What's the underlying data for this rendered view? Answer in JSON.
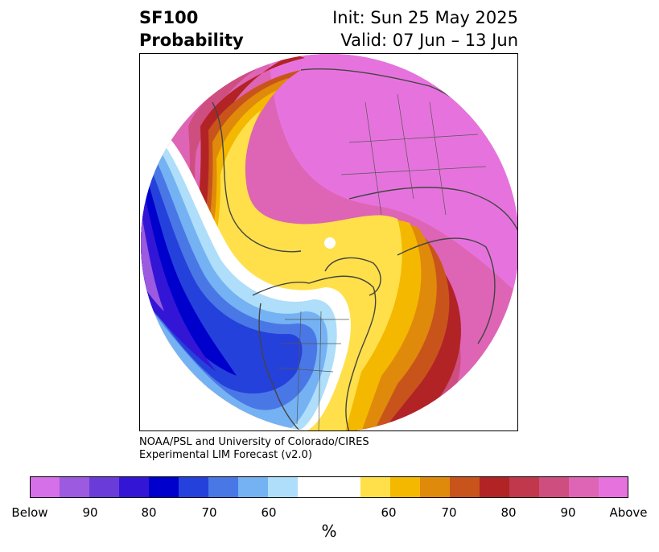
{
  "header": {
    "left_line1": "SF100",
    "left_line2": "Probability",
    "right_line1": "Init: Sun 25 May 2025",
    "right_line2": "Valid: 07 Jun – 13 Jun"
  },
  "credit": {
    "line1": "NOAA/PSL and University of Colorado/CIRES",
    "line2": "Experimental LIM Forecast (v2.0)"
  },
  "colorbar": {
    "colors": [
      "#d670e8",
      "#9b5adf",
      "#6a3bd9",
      "#3316d5",
      "#0000cc",
      "#2541db",
      "#4a77e6",
      "#75b2f3",
      "#aedef9",
      "#ffffff",
      "#ffe04a",
      "#f5b800",
      "#e08a0b",
      "#c9541b",
      "#b22326",
      "#c1384d",
      "#cf4e80",
      "#de64b5",
      "#e673dd"
    ],
    "ticks": [
      "Below",
      "90",
      "80",
      "70",
      "60",
      "60",
      "70",
      "80",
      "90",
      "Above"
    ],
    "unit": "%"
  }
}
